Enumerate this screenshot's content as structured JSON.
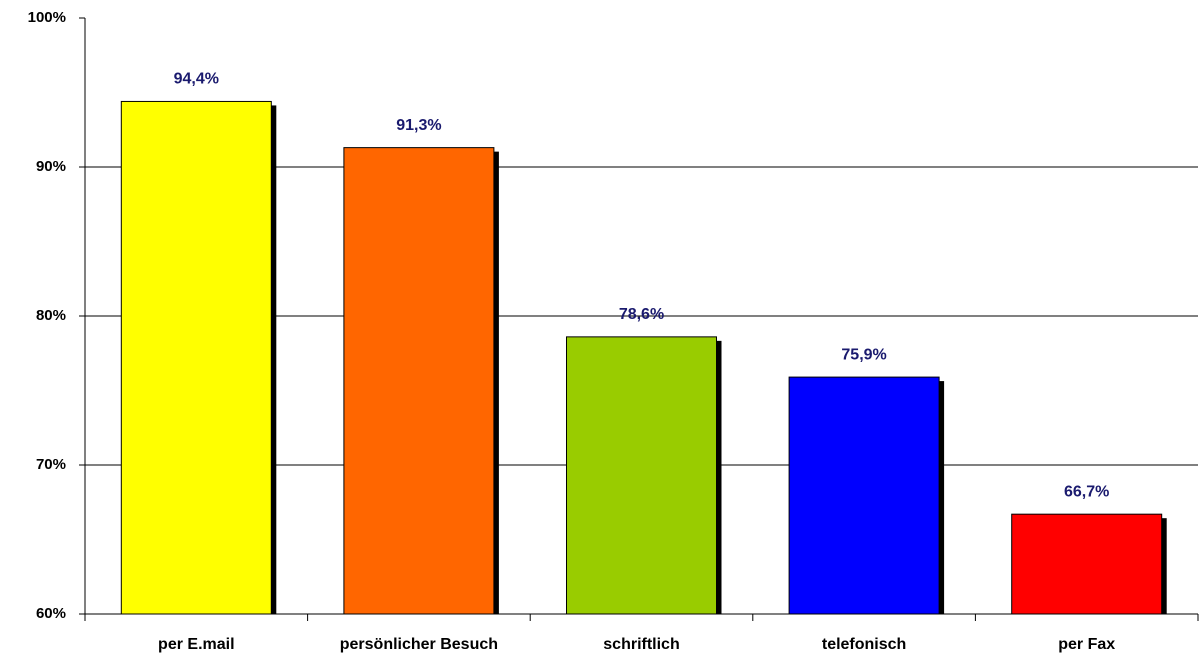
{
  "chart_data": {
    "type": "bar",
    "categories": [
      "per E.mail",
      "persönlicher Besuch",
      "schriftlich",
      "telefonisch",
      "per Fax"
    ],
    "values": [
      94.4,
      91.3,
      78.6,
      75.9,
      66.7
    ],
    "value_labels": [
      "94,4%",
      "91,3%",
      "78,6%",
      "75,9%",
      "66,7%"
    ],
    "colors": [
      "#ffff00",
      "#ff6600",
      "#99cc00",
      "#0000ff",
      "#ff0000"
    ],
    "ylim": [
      60,
      100
    ],
    "yticks": [
      {
        "value": 60,
        "label": "60%"
      },
      {
        "value": 70,
        "label": "70%"
      },
      {
        "value": 80,
        "label": "80%"
      },
      {
        "value": 90,
        "label": "90%"
      },
      {
        "value": 100,
        "label": "100%"
      }
    ],
    "grid": true
  }
}
